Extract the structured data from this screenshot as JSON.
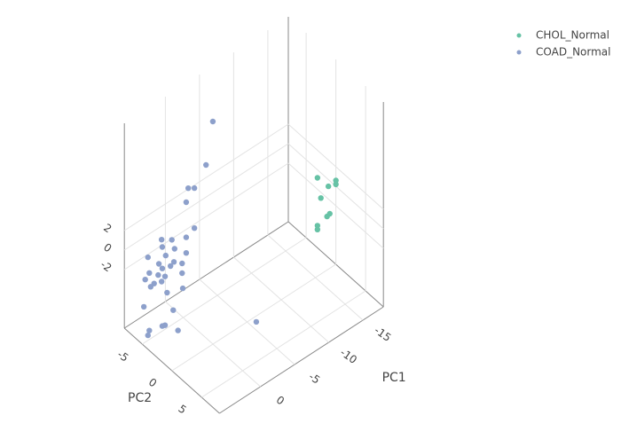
{
  "chart_data": {
    "type": "scatter3d",
    "x_label": "PC1",
    "y_label": "PC2",
    "xlim": [
      -18,
      6
    ],
    "ylim": [
      -8,
      8
    ],
    "zlim": [
      -8,
      13
    ],
    "xticks": [
      -15,
      -10,
      -5,
      0
    ],
    "yticks": [
      -5,
      0,
      5
    ],
    "zticks": [
      -2,
      0,
      2
    ],
    "grid": true,
    "legend": "top-right",
    "series": [
      {
        "name": "CHOL_Normal",
        "color": "#66c2a5",
        "x": [
          -14.0,
          -16.7,
          -15.6,
          -16.7,
          -14.5,
          -15.8,
          -15.4,
          -14.0,
          -14.0
        ],
        "y": [
          1.5,
          1.5,
          1.5,
          1.5,
          1.5,
          1.5,
          1.5,
          1.5,
          1.5
        ],
        "z": [
          3.5,
          2.0,
          1.9,
          1.6,
          1.2,
          -1.0,
          -1.1,
          -1.4,
          -1.8
        ]
      },
      {
        "name": "COAD_Normal",
        "color": "#8da0cb",
        "x": [
          -2.6,
          -1.6,
          1.0,
          0.1,
          1.3,
          0.1,
          4.9,
          3.4,
          1.3,
          4.8,
          3.0,
          1.3,
          6.9,
          4.3,
          3.1,
          1.9,
          5.3,
          4.8,
          3.6,
          6.7,
          5.4,
          4.4,
          7.3,
          1.9,
          6.0,
          4.9,
          6.5,
          4.1,
          1.8,
          7.5,
          3.2,
          4.4,
          6.7,
          4.8,
          2.5,
          6.9,
          -2.0
        ],
        "y": [
          -3,
          -3,
          -3,
          -3,
          -3,
          -3,
          -3,
          -3,
          -3,
          -3,
          -3,
          -3,
          -3,
          -3,
          -3,
          -3,
          -3,
          -3,
          -3,
          -3,
          -3,
          -3,
          -3,
          -3,
          -3,
          -3,
          -3,
          -3,
          -3,
          -3,
          -3,
          -3,
          -3,
          -3,
          -3,
          -3,
          5
        ],
        "z": [
          12.0,
          8.0,
          6.8,
          6.4,
          5.5,
          2.3,
          3.3,
          2.6,
          1.9,
          2.5,
          1.5,
          0.3,
          2.4,
          1.4,
          0.2,
          -0.5,
          1.0,
          0.3,
          0.0,
          0.7,
          -0.1,
          -0.7,
          0.3,
          -1.5,
          -0.7,
          -1.0,
          -0.8,
          -2.5,
          -3.1,
          -2.4,
          -4.7,
          -5.7,
          -5.2,
          -5.6,
          -7.1,
          -5.6,
          -3.9
        ]
      }
    ]
  }
}
